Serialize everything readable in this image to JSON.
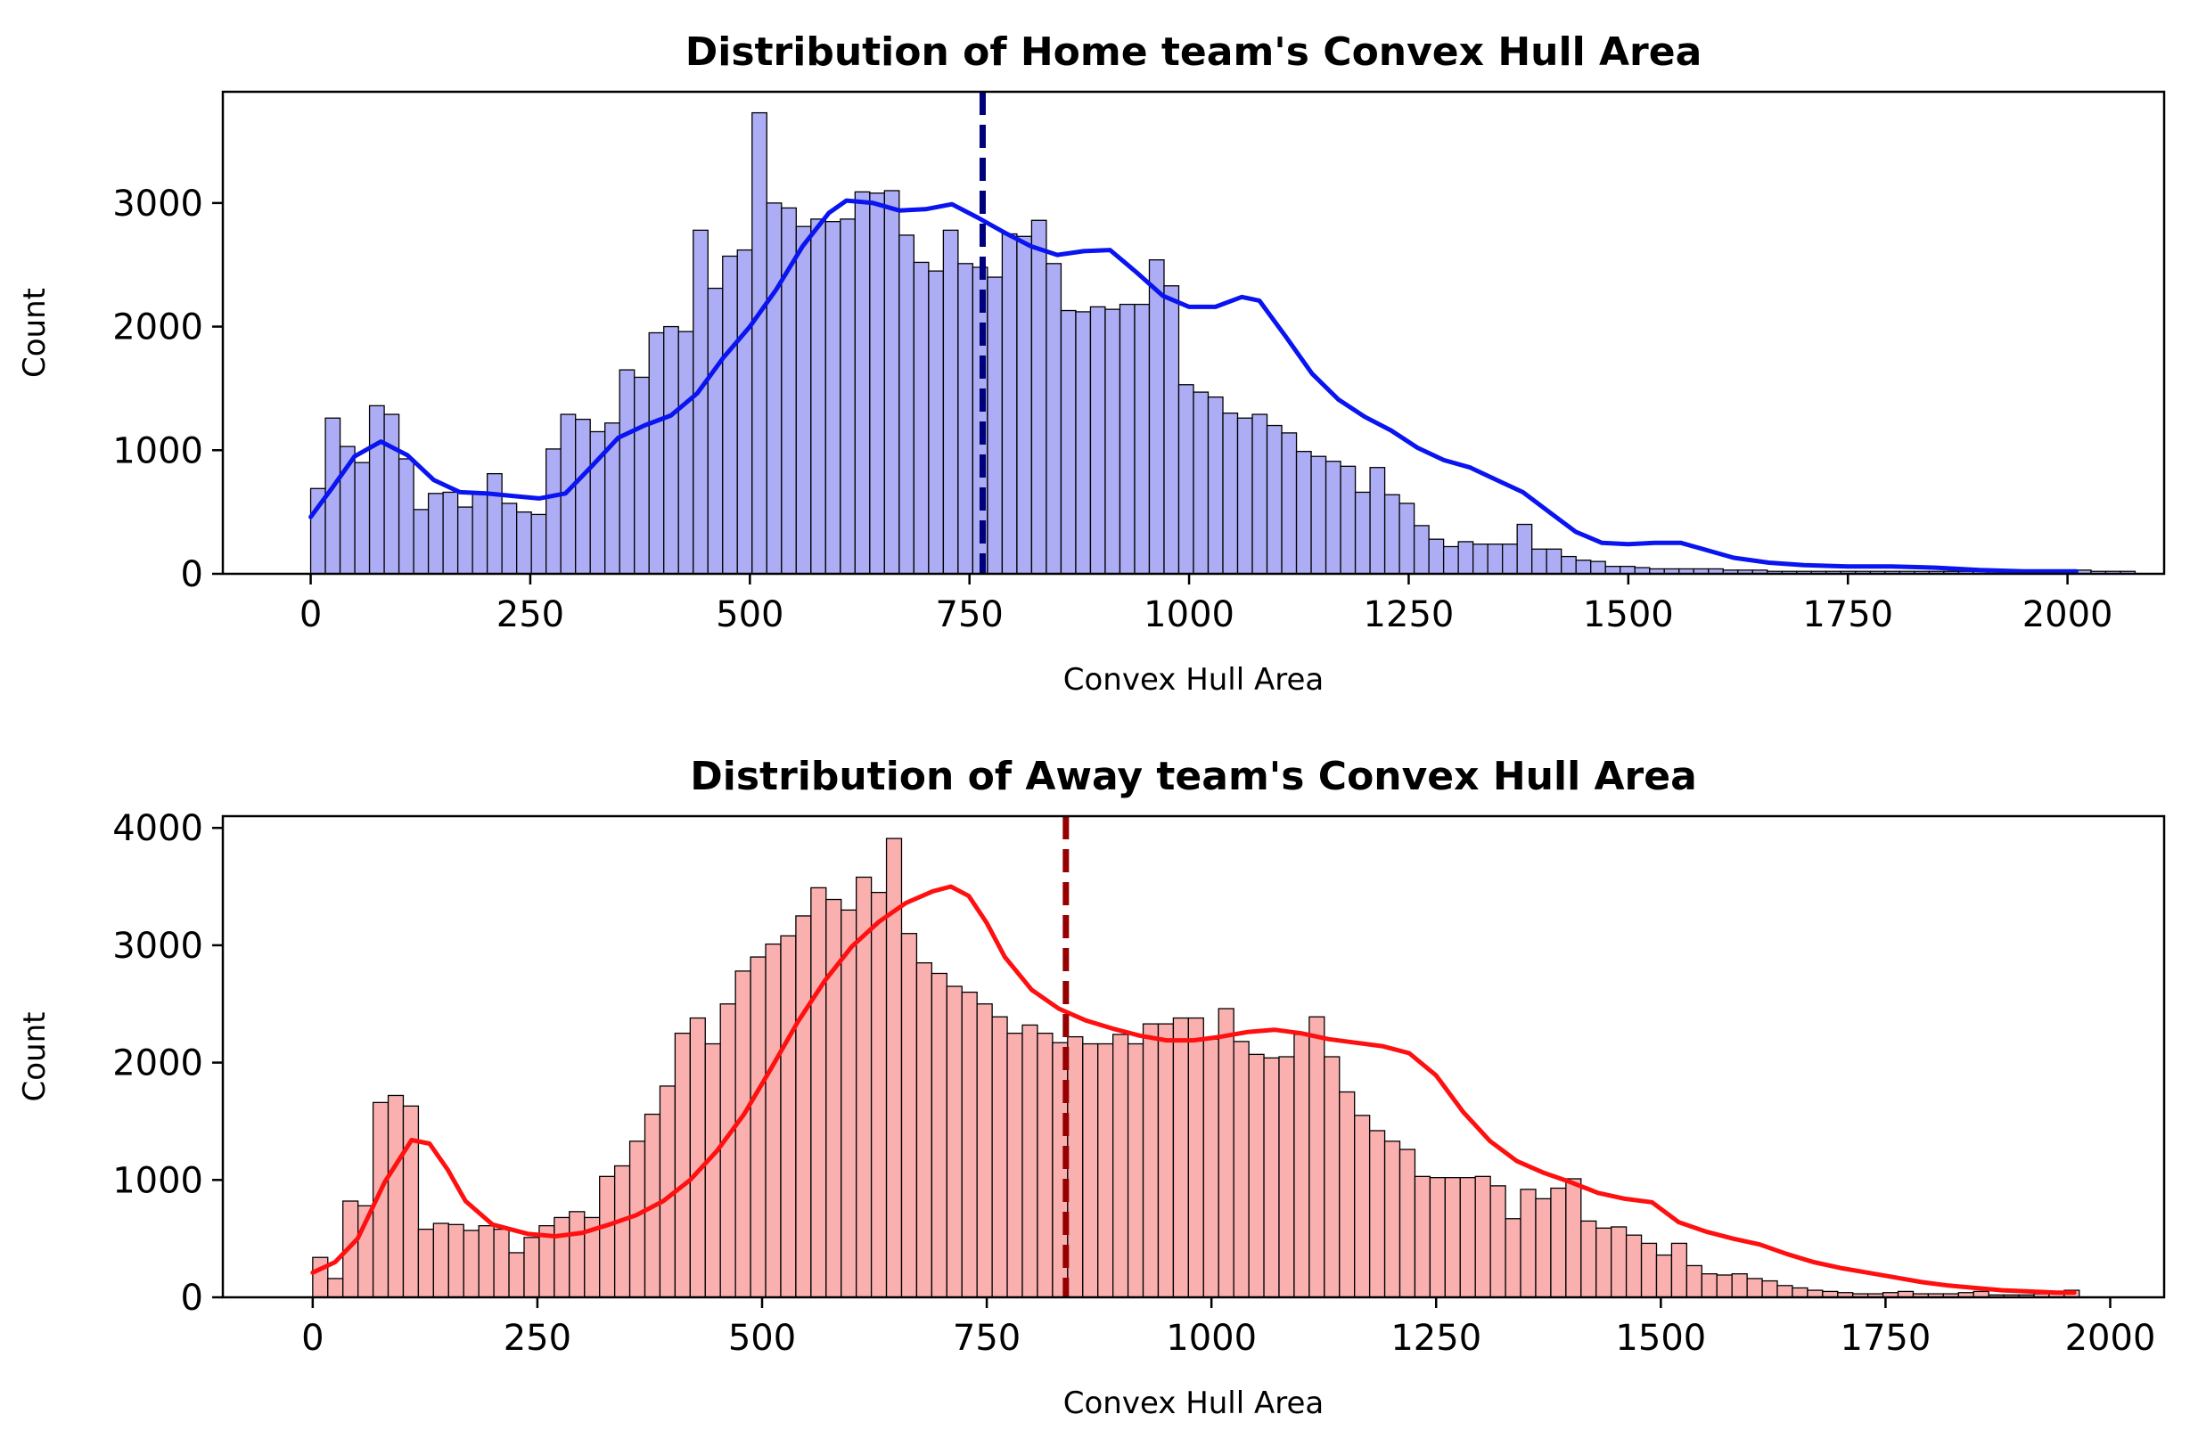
{
  "chart_data": [
    {
      "type": "histogram",
      "title": "Distribution of Home team's Convex Hull Area",
      "xlabel": "Convex Hull Area",
      "ylabel": "Count",
      "xlim": [
        -100,
        2110
      ],
      "ylim": [
        0,
        3900
      ],
      "xticks": [
        0,
        250,
        500,
        750,
        1000,
        1250,
        1500,
        1750,
        2000
      ],
      "yticks": [
        0,
        1000,
        2000,
        3000
      ],
      "bin_start": 0,
      "bin_width": 16.75,
      "counts": [
        690,
        1260,
        1030,
        900,
        1360,
        1290,
        930,
        520,
        650,
        660,
        540,
        650,
        810,
        570,
        500,
        480,
        1010,
        1290,
        1250,
        1150,
        1220,
        1650,
        1590,
        1950,
        2000,
        1960,
        2780,
        2310,
        2570,
        2620,
        3730,
        3000,
        2960,
        2810,
        2870,
        2850,
        2870,
        3090,
        3080,
        3100,
        2740,
        2520,
        2450,
        2780,
        2510,
        2480,
        2400,
        2750,
        2730,
        2860,
        2510,
        2130,
        2120,
        2160,
        2140,
        2180,
        2180,
        2540,
        2330,
        1530,
        1470,
        1430,
        1300,
        1260,
        1290,
        1200,
        1140,
        990,
        950,
        910,
        870,
        660,
        860,
        640,
        570,
        390,
        280,
        220,
        260,
        240,
        240,
        240,
        400,
        200,
        200,
        140,
        110,
        100,
        60,
        60,
        50,
        40,
        40,
        40,
        40,
        40,
        30,
        30,
        30,
        20,
        20,
        20,
        20,
        20,
        20,
        20,
        20,
        20,
        20,
        20,
        20,
        20,
        20,
        20,
        20,
        20,
        20,
        20,
        20,
        20,
        30,
        20,
        20,
        20
      ],
      "kde": [
        [
          0,
          460
        ],
        [
          25,
          700
        ],
        [
          50,
          950
        ],
        [
          80,
          1070
        ],
        [
          110,
          960
        ],
        [
          140,
          760
        ],
        [
          170,
          660
        ],
        [
          200,
          650
        ],
        [
          230,
          630
        ],
        [
          260,
          610
        ],
        [
          290,
          650
        ],
        [
          320,
          870
        ],
        [
          350,
          1100
        ],
        [
          380,
          1200
        ],
        [
          410,
          1280
        ],
        [
          440,
          1460
        ],
        [
          470,
          1750
        ],
        [
          500,
          2000
        ],
        [
          530,
          2300
        ],
        [
          560,
          2650
        ],
        [
          590,
          2920
        ],
        [
          610,
          3020
        ],
        [
          640,
          3000
        ],
        [
          670,
          2940
        ],
        [
          700,
          2950
        ],
        [
          730,
          2990
        ],
        [
          760,
          2880
        ],
        [
          790,
          2760
        ],
        [
          820,
          2650
        ],
        [
          850,
          2580
        ],
        [
          880,
          2610
        ],
        [
          910,
          2620
        ],
        [
          940,
          2440
        ],
        [
          970,
          2250
        ],
        [
          1000,
          2160
        ],
        [
          1030,
          2160
        ],
        [
          1060,
          2240
        ],
        [
          1080,
          2210
        ],
        [
          1110,
          1920
        ],
        [
          1140,
          1620
        ],
        [
          1170,
          1410
        ],
        [
          1200,
          1270
        ],
        [
          1230,
          1160
        ],
        [
          1260,
          1020
        ],
        [
          1290,
          920
        ],
        [
          1320,
          860
        ],
        [
          1350,
          760
        ],
        [
          1380,
          660
        ],
        [
          1410,
          500
        ],
        [
          1440,
          340
        ],
        [
          1470,
          250
        ],
        [
          1500,
          240
        ],
        [
          1530,
          250
        ],
        [
          1560,
          250
        ],
        [
          1590,
          190
        ],
        [
          1620,
          130
        ],
        [
          1660,
          90
        ],
        [
          1700,
          70
        ],
        [
          1750,
          60
        ],
        [
          1800,
          60
        ],
        [
          1850,
          50
        ],
        [
          1900,
          30
        ],
        [
          1950,
          20
        ],
        [
          2000,
          20
        ],
        [
          2010,
          20
        ]
      ],
      "mean_line": 765,
      "colors": {
        "bar_fill": "#adadf5",
        "kde": "#0a14f0",
        "mean": "#00007d"
      }
    },
    {
      "type": "histogram",
      "title": "Distribution of Away team's Convex Hull Area",
      "xlabel": "Convex Hull Area",
      "ylabel": "Count",
      "xlim": [
        -100,
        2060
      ],
      "ylim": [
        0,
        4100
      ],
      "xticks": [
        0,
        250,
        500,
        750,
        1000,
        1250,
        1500,
        1750,
        2000
      ],
      "yticks": [
        0,
        1000,
        2000,
        3000,
        4000
      ],
      "bin_start": 0,
      "bin_width": 16.8,
      "counts": [
        340,
        160,
        820,
        780,
        1660,
        1720,
        1630,
        580,
        630,
        620,
        570,
        610,
        580,
        380,
        510,
        610,
        680,
        730,
        680,
        1030,
        1120,
        1330,
        1560,
        1800,
        2250,
        2380,
        2160,
        2500,
        2780,
        2900,
        3010,
        3080,
        3250,
        3490,
        3390,
        3300,
        3580,
        3450,
        3910,
        3100,
        2850,
        2760,
        2650,
        2600,
        2500,
        2390,
        2250,
        2320,
        2250,
        2170,
        2220,
        2160,
        2160,
        2240,
        2160,
        2330,
        2330,
        2380,
        2380,
        2200,
        2460,
        2180,
        2070,
        2040,
        2050,
        2240,
        2390,
        2050,
        1750,
        1550,
        1420,
        1330,
        1260,
        1030,
        1020,
        1020,
        1020,
        1030,
        950,
        670,
        920,
        840,
        930,
        1010,
        650,
        590,
        600,
        530,
        460,
        360,
        460,
        270,
        200,
        190,
        200,
        160,
        140,
        100,
        80,
        60,
        50,
        40,
        30,
        30,
        40,
        50,
        30,
        30,
        30,
        40,
        50,
        20,
        20,
        20,
        30,
        30,
        60
      ],
      "kde": [
        [
          0,
          210
        ],
        [
          25,
          300
        ],
        [
          50,
          500
        ],
        [
          80,
          980
        ],
        [
          110,
          1340
        ],
        [
          130,
          1310
        ],
        [
          150,
          1090
        ],
        [
          170,
          820
        ],
        [
          200,
          620
        ],
        [
          240,
          540
        ],
        [
          270,
          520
        ],
        [
          300,
          550
        ],
        [
          330,
          620
        ],
        [
          360,
          700
        ],
        [
          390,
          820
        ],
        [
          420,
          1000
        ],
        [
          450,
          1250
        ],
        [
          480,
          1560
        ],
        [
          510,
          1950
        ],
        [
          540,
          2350
        ],
        [
          570,
          2700
        ],
        [
          600,
          2990
        ],
        [
          630,
          3200
        ],
        [
          660,
          3360
        ],
        [
          690,
          3460
        ],
        [
          710,
          3500
        ],
        [
          730,
          3420
        ],
        [
          750,
          3190
        ],
        [
          770,
          2900
        ],
        [
          800,
          2620
        ],
        [
          830,
          2460
        ],
        [
          860,
          2360
        ],
        [
          890,
          2290
        ],
        [
          920,
          2230
        ],
        [
          950,
          2190
        ],
        [
          980,
          2190
        ],
        [
          1010,
          2220
        ],
        [
          1040,
          2260
        ],
        [
          1070,
          2280
        ],
        [
          1100,
          2250
        ],
        [
          1130,
          2200
        ],
        [
          1160,
          2170
        ],
        [
          1190,
          2140
        ],
        [
          1220,
          2080
        ],
        [
          1250,
          1890
        ],
        [
          1280,
          1580
        ],
        [
          1310,
          1330
        ],
        [
          1340,
          1160
        ],
        [
          1370,
          1060
        ],
        [
          1400,
          980
        ],
        [
          1430,
          890
        ],
        [
          1460,
          840
        ],
        [
          1490,
          810
        ],
        [
          1520,
          640
        ],
        [
          1550,
          560
        ],
        [
          1580,
          500
        ],
        [
          1610,
          450
        ],
        [
          1640,
          370
        ],
        [
          1670,
          300
        ],
        [
          1700,
          250
        ],
        [
          1730,
          210
        ],
        [
          1760,
          170
        ],
        [
          1790,
          130
        ],
        [
          1820,
          100
        ],
        [
          1850,
          80
        ],
        [
          1880,
          60
        ],
        [
          1910,
          50
        ],
        [
          1940,
          40
        ],
        [
          1960,
          40
        ]
      ],
      "mean_line": 838,
      "colors": {
        "bar_fill": "#fbb0b0",
        "kde": "#ff1010",
        "mean": "#960000"
      }
    }
  ]
}
